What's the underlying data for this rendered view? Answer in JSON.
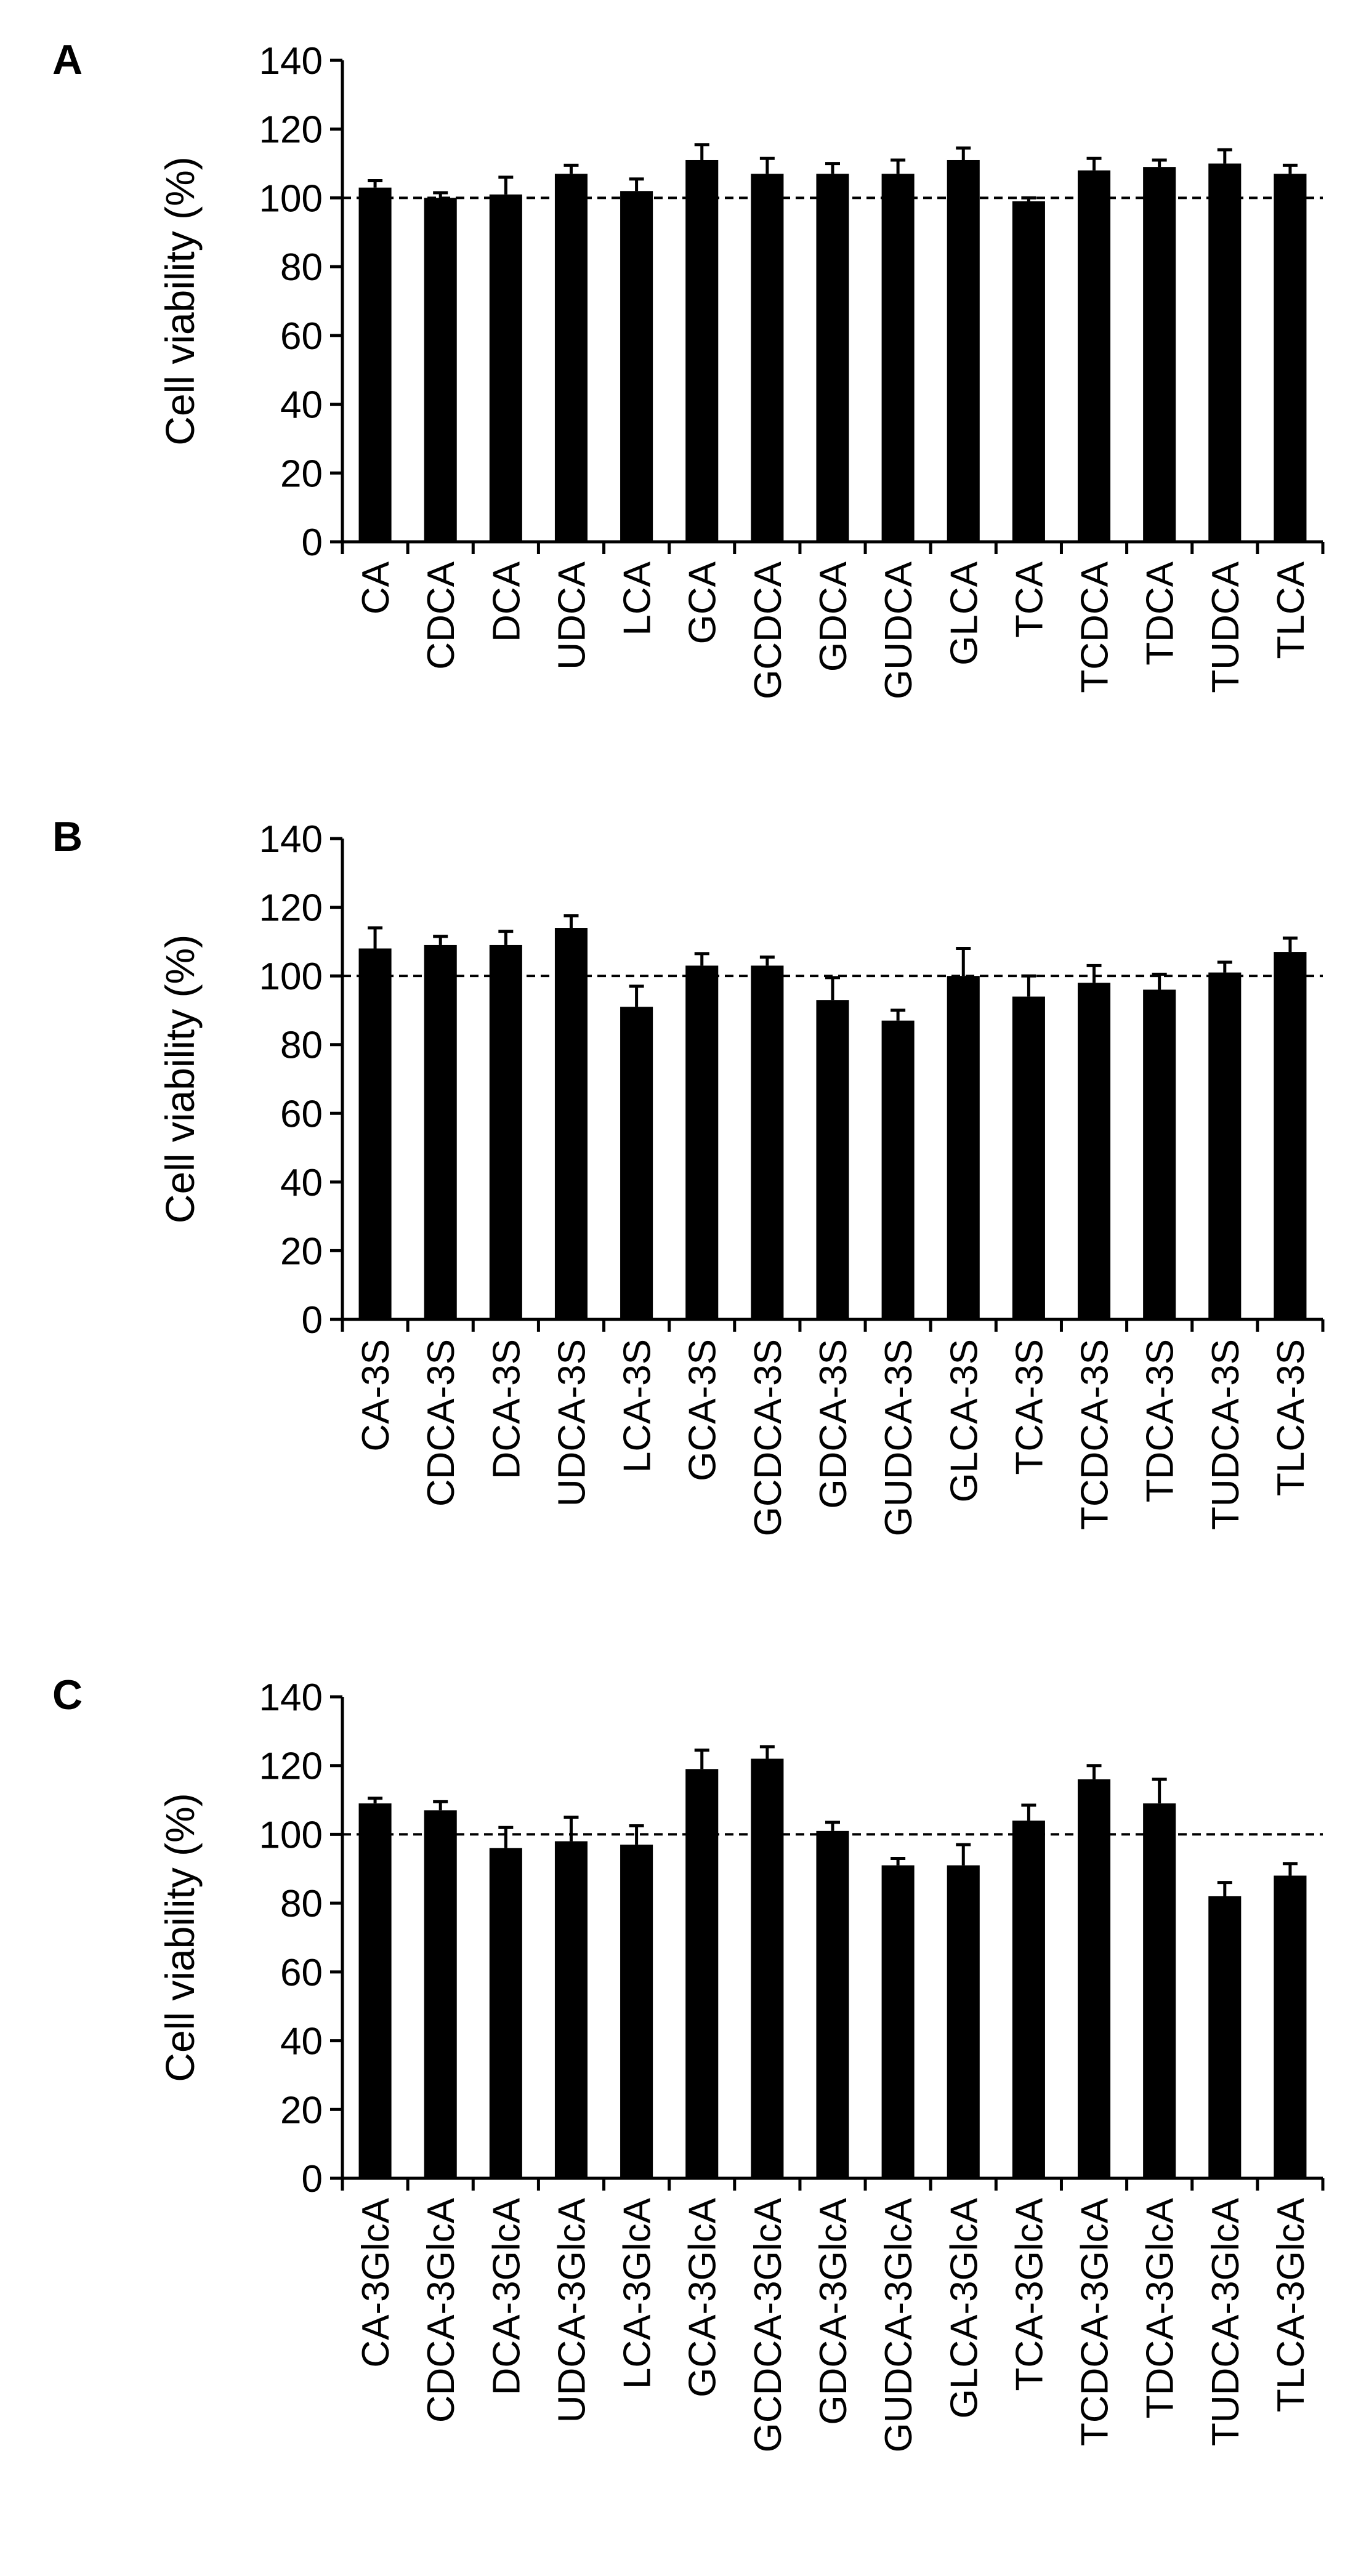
{
  "figure": {
    "panels": [
      {
        "label": "A"
      },
      {
        "label": "B"
      },
      {
        "label": "C"
      }
    ]
  },
  "chart_data": [
    {
      "type": "bar",
      "panel": "A",
      "ylabel": "Cell viability (%)",
      "xlabel": "",
      "ylim": [
        0,
        140
      ],
      "yticks": [
        0,
        20,
        40,
        60,
        80,
        100,
        120,
        140
      ],
      "reference_line": 100,
      "categories": [
        "CA",
        "CDCA",
        "DCA",
        "UDCA",
        "LCA",
        "GCA",
        "GCDCA",
        "GDCA",
        "GUDCA",
        "GLCA",
        "TCA",
        "TCDCA",
        "TDCA",
        "TUDCA",
        "TLCA"
      ],
      "values": [
        103,
        100,
        101,
        107,
        102,
        111,
        107,
        107,
        107,
        111,
        99,
        108,
        109,
        110,
        107
      ],
      "errors": [
        2,
        1.5,
        5,
        2.5,
        3.5,
        4.5,
        4.5,
        3,
        4,
        3.5,
        1,
        3.5,
        2,
        4,
        2.5
      ],
      "bar_color": "#000000"
    },
    {
      "type": "bar",
      "panel": "B",
      "ylabel": "Cell viability (%)",
      "xlabel": "",
      "ylim": [
        0,
        140
      ],
      "yticks": [
        0,
        20,
        40,
        60,
        80,
        100,
        120,
        140
      ],
      "reference_line": 100,
      "categories": [
        "CA-3S",
        "CDCA-3S",
        "DCA-3S",
        "UDCA-3S",
        "LCA-3S",
        "GCA-3S",
        "GCDCA-3S",
        "GDCA-3S",
        "GUDCA-3S",
        "GLCA-3S",
        "TCA-3S",
        "TCDCA-3S",
        "TDCA-3S",
        "TUDCA-3S",
        "TLCA-3S"
      ],
      "values": [
        108,
        109,
        109,
        114,
        91,
        103,
        103,
        93,
        87,
        100,
        94,
        98,
        96,
        101,
        107
      ],
      "errors": [
        6,
        2.5,
        4,
        3.5,
        6,
        3.5,
        2.5,
        6.5,
        3,
        8,
        6,
        5,
        4.5,
        3,
        4
      ],
      "bar_color": "#000000"
    },
    {
      "type": "bar",
      "panel": "C",
      "ylabel": "Cell viability (%)",
      "xlabel": "",
      "ylim": [
        0,
        140
      ],
      "yticks": [
        0,
        20,
        40,
        60,
        80,
        100,
        120,
        140
      ],
      "reference_line": 100,
      "categories": [
        "CA-3GlcA",
        "CDCA-3GlcA",
        "DCA-3GlcA",
        "UDCA-3GlcA",
        "LCA-3GlcA",
        "GCA-3GlcA",
        "GCDCA-3GlcA",
        "GDCA-3GlcA",
        "GUDCA-3GlcA",
        "GLCA-3GlcA",
        "TCA-3GlcA",
        "TCDCA-3GlcA",
        "TDCA-3GlcA",
        "TUDCA-3GlcA",
        "TLCA-3GlcA"
      ],
      "values": [
        109,
        107,
        96,
        98,
        97,
        119,
        122,
        101,
        91,
        91,
        104,
        116,
        109,
        82,
        88
      ],
      "errors": [
        1.5,
        2.5,
        6,
        7,
        5.5,
        5.5,
        3.5,
        2.5,
        2,
        6,
        4.5,
        4,
        7,
        4,
        3.5
      ],
      "bar_color": "#000000"
    }
  ]
}
